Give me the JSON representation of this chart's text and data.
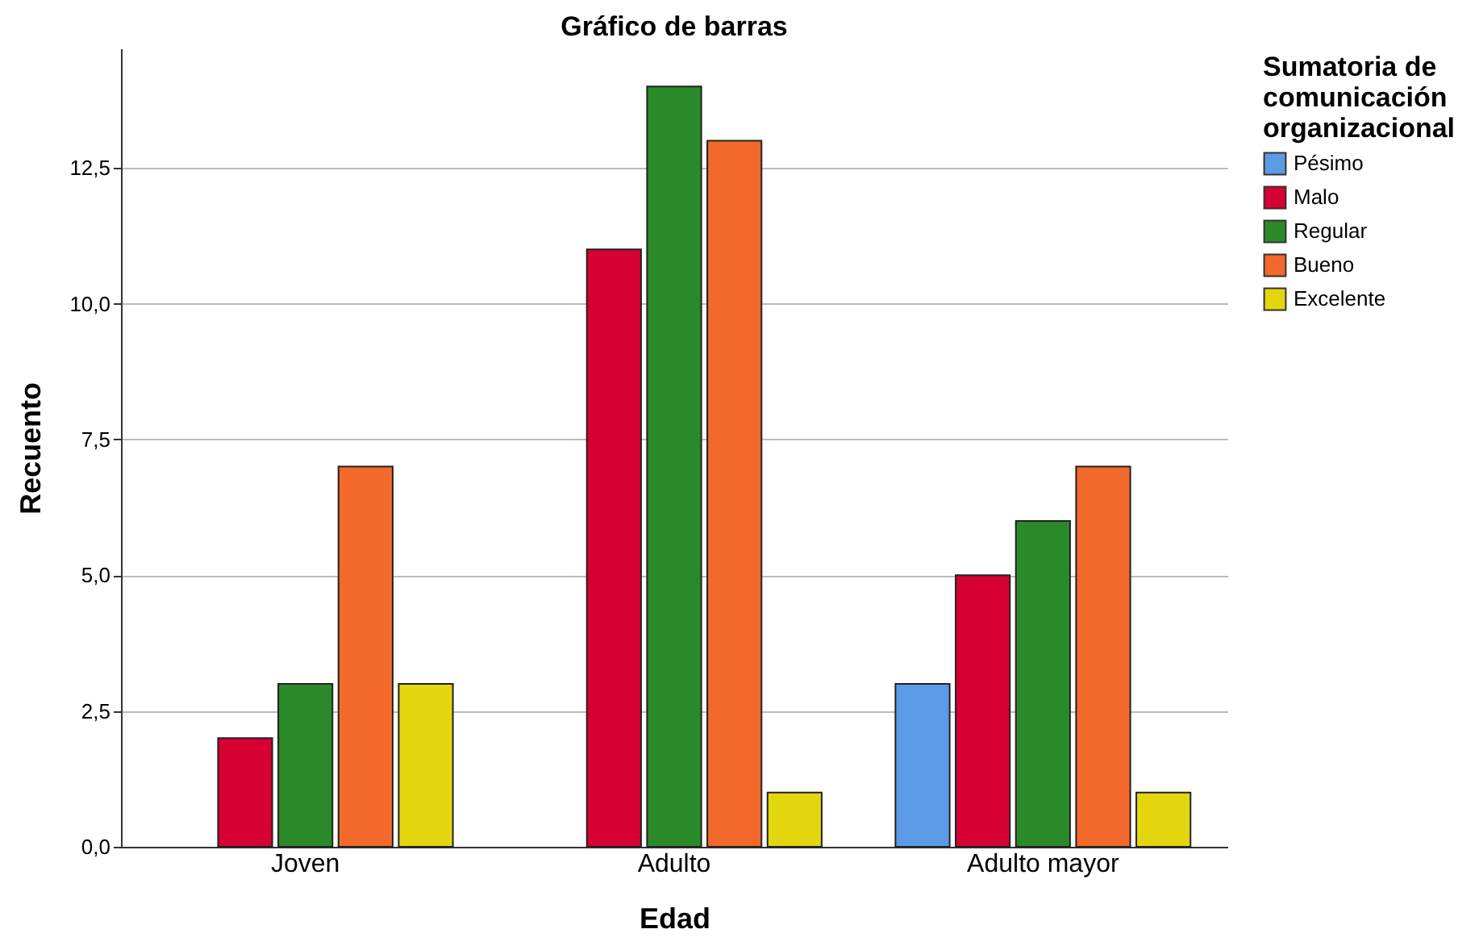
{
  "chart_data": {
    "type": "bar",
    "title": "Gráfico de barras",
    "xlabel": "Edad",
    "ylabel": "Recuento",
    "legend_title": "Sumatoria de comunicación organizacional",
    "categories": [
      "Joven",
      "Adulto",
      "Adulto mayor"
    ],
    "series": [
      {
        "name": "Pésimo",
        "color": "#5b9be6",
        "values": [
          null,
          null,
          3
        ]
      },
      {
        "name": "Malo",
        "color": "#d60032",
        "values": [
          2,
          11,
          5
        ]
      },
      {
        "name": "Regular",
        "color": "#2a8a2a",
        "values": [
          3,
          14,
          6
        ]
      },
      {
        "name": "Bueno",
        "color": "#f2692b",
        "values": [
          7,
          13,
          7
        ]
      },
      {
        "name": "Excelente",
        "color": "#e3d60f",
        "values": [
          3,
          1,
          1
        ]
      }
    ],
    "ylim": [
      0,
      14.7
    ],
    "yticks": [
      {
        "value": 0,
        "label": "0,0"
      },
      {
        "value": 2.5,
        "label": "2,5"
      },
      {
        "value": 5,
        "label": "5,0"
      },
      {
        "value": 7.5,
        "label": "7,5"
      },
      {
        "value": 10,
        "label": "10,0"
      },
      {
        "value": 12.5,
        "label": "12,5"
      }
    ],
    "grid": "y",
    "legend": "right"
  }
}
